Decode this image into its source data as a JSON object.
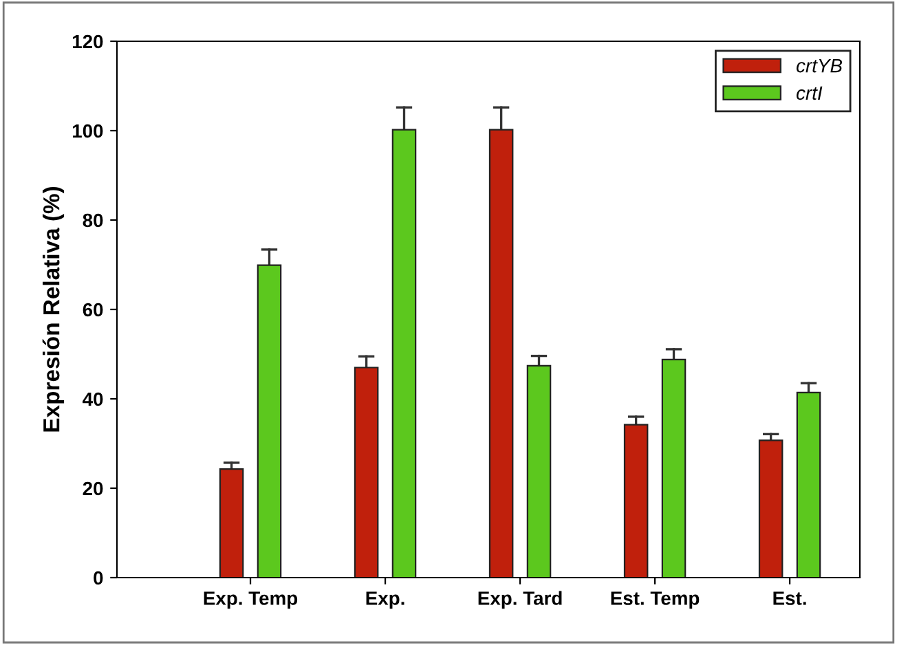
{
  "chart_data": {
    "type": "bar",
    "ylabel": "Expresión Relativa (%)",
    "categories": [
      "Exp. Temp",
      "Exp.",
      "Exp. Tard",
      "Est. Temp",
      "Est."
    ],
    "series": [
      {
        "name": "crtYB",
        "color": "#c0200c",
        "values": [
          24.3,
          47.0,
          100.2,
          34.2,
          30.7
        ],
        "errors": [
          [
            24.3,
            25.7
          ],
          [
            47.0,
            49.5
          ],
          [
            100.2,
            105.2
          ],
          [
            34.2,
            36.0
          ],
          [
            30.7,
            32.1
          ]
        ]
      },
      {
        "name": "crtI",
        "color": "#5cc81e",
        "values": [
          69.9,
          100.2,
          47.4,
          48.8,
          41.4
        ],
        "errors": [
          [
            69.9,
            73.4
          ],
          [
            100.2,
            105.2
          ],
          [
            47.4,
            49.6
          ],
          [
            48.8,
            51.1
          ],
          [
            41.4,
            43.5
          ]
        ]
      }
    ],
    "ylim": [
      0,
      120
    ],
    "yticks": [
      0,
      20,
      40,
      60,
      80,
      100,
      120
    ],
    "grid": false,
    "legend": "top right"
  }
}
